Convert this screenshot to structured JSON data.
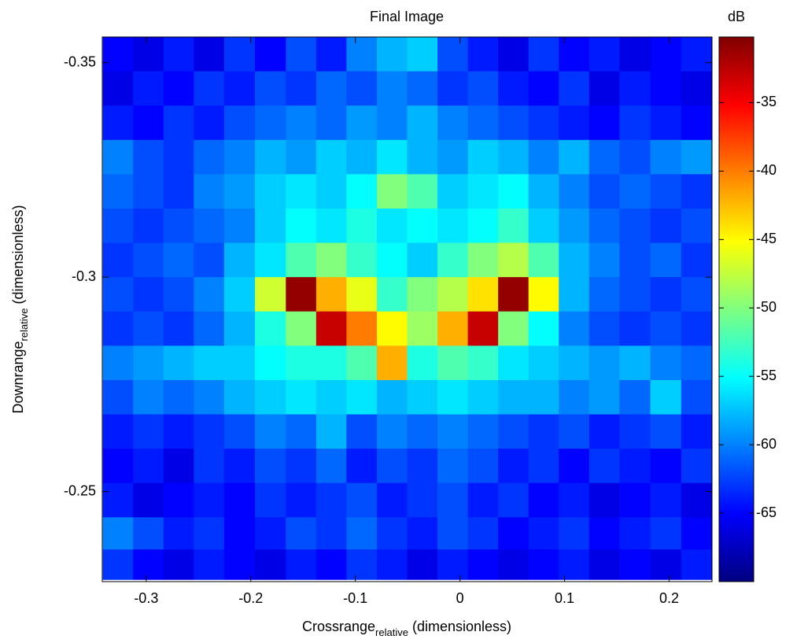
{
  "chart_data": {
    "type": "heatmap",
    "title": "Final Image",
    "xlabel": {
      "text": "Crossrange",
      "sub": "relative",
      "suffix": "(dimensionless)"
    },
    "ylabel": {
      "text": "Downrange",
      "sub": "relative",
      "suffix": "(dimensionless)"
    },
    "colorbar_label": "dB",
    "colormap": "jet",
    "xlim": [
      -0.342,
      0.241
    ],
    "xticks": [
      -0.3,
      -0.2,
      -0.1,
      0,
      0.1,
      0.2
    ],
    "ylim": [
      -0.356,
      -0.229
    ],
    "yticks": [
      -0.35,
      -0.3,
      -0.25
    ],
    "y_reversed": true,
    "clim": [
      -70,
      -30.2
    ],
    "cticks": [
      -35,
      -40,
      -45,
      -50,
      -55,
      -60,
      -65
    ],
    "x": [
      -0.327,
      -0.298,
      -0.269,
      -0.24,
      -0.211,
      -0.181,
      -0.152,
      -0.123,
      -0.094,
      -0.065,
      -0.036,
      -0.007,
      0.022,
      0.051,
      0.08,
      0.109,
      0.138,
      0.167,
      0.197,
      0.226
    ],
    "y": [
      -0.352,
      -0.344,
      -0.336,
      -0.328,
      -0.32,
      -0.312,
      -0.304,
      -0.296,
      -0.288,
      -0.28,
      -0.272,
      -0.264,
      -0.256,
      -0.248,
      -0.24,
      -0.233
    ],
    "z": [
      [
        -65,
        -66,
        -64,
        -66,
        -63,
        -65,
        -62,
        -64,
        -60,
        -58,
        -57,
        -62,
        -64,
        -66,
        -63,
        -65,
        -64,
        -66,
        -65,
        -64
      ],
      [
        -66,
        -64,
        -65,
        -63,
        -64,
        -62,
        -63,
        -61,
        -62,
        -60,
        -61,
        -63,
        -62,
        -64,
        -65,
        -63,
        -66,
        -64,
        -65,
        -66
      ],
      [
        -64,
        -65,
        -63,
        -64,
        -62,
        -61,
        -60,
        -61,
        -59,
        -60,
        -58,
        -60,
        -61,
        -62,
        -63,
        -64,
        -65,
        -63,
        -64,
        -65
      ],
      [
        -60,
        -62,
        -63,
        -61,
        -60,
        -58,
        -59,
        -57,
        -58,
        -56,
        -58,
        -59,
        -57,
        -58,
        -60,
        -58,
        -61,
        -62,
        -60,
        -59
      ],
      [
        -61,
        -62,
        -63,
        -60,
        -59,
        -57,
        -56,
        -57,
        -55,
        -50,
        -52,
        -57,
        -56,
        -55,
        -58,
        -60,
        -62,
        -61,
        -62,
        -63
      ],
      [
        -62,
        -63,
        -62,
        -61,
        -60,
        -57,
        -55,
        -56,
        -54,
        -56,
        -55,
        -56,
        -55,
        -53,
        -57,
        -59,
        -61,
        -62,
        -63,
        -62
      ],
      [
        -63,
        -62,
        -61,
        -62,
        -58,
        -56,
        -52,
        -50,
        -53,
        -55,
        -57,
        -53,
        -50,
        -48,
        -52,
        -58,
        -60,
        -62,
        -61,
        -63
      ],
      [
        -62,
        -63,
        -62,
        -60,
        -57,
        -47,
        -31,
        -42,
        -46,
        -53,
        -50,
        -48,
        -44,
        -31,
        -45,
        -58,
        -61,
        -62,
        -63,
        -62
      ],
      [
        -63,
        -62,
        -63,
        -61,
        -58,
        -54,
        -50,
        -33,
        -40,
        -45,
        -49,
        -42,
        -33,
        -50,
        -55,
        -60,
        -62,
        -63,
        -62,
        -63
      ],
      [
        -60,
        -59,
        -58,
        -57,
        -57,
        -55,
        -54,
        -54,
        -52,
        -42,
        -54,
        -52,
        -53,
        -56,
        -57,
        -58,
        -59,
        -58,
        -60,
        -61
      ],
      [
        -62,
        -60,
        -61,
        -60,
        -58,
        -57,
        -56,
        -57,
        -56,
        -58,
        -57,
        -56,
        -57,
        -58,
        -58,
        -60,
        -59,
        -61,
        -57,
        -62
      ],
      [
        -64,
        -63,
        -64,
        -63,
        -62,
        -60,
        -61,
        -58,
        -62,
        -60,
        -61,
        -60,
        -61,
        -62,
        -63,
        -62,
        -64,
        -63,
        -62,
        -64
      ],
      [
        -65,
        -64,
        -66,
        -63,
        -64,
        -62,
        -63,
        -61,
        -64,
        -62,
        -63,
        -61,
        -62,
        -64,
        -63,
        -65,
        -63,
        -64,
        -65,
        -63
      ],
      [
        -64,
        -66,
        -65,
        -64,
        -65,
        -63,
        -64,
        -63,
        -62,
        -64,
        -63,
        -62,
        -64,
        -63,
        -65,
        -64,
        -66,
        -65,
        -64,
        -66
      ],
      [
        -60,
        -62,
        -64,
        -63,
        -65,
        -64,
        -62,
        -63,
        -61,
        -63,
        -64,
        -62,
        -63,
        -65,
        -64,
        -63,
        -65,
        -64,
        -63,
        -65
      ],
      [
        -63,
        -65,
        -66,
        -64,
        -65,
        -66,
        -64,
        -65,
        -63,
        -64,
        -66,
        -64,
        -65,
        -66,
        -65,
        -64,
        -66,
        -65,
        -66,
        -64
      ]
    ]
  }
}
